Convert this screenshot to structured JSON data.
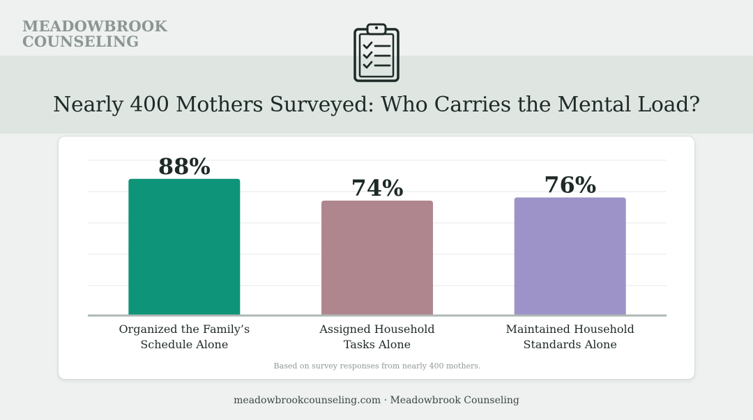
{
  "brand": {
    "line1": "MEADOWBROOK",
    "line2": "COUNSELING"
  },
  "header": {
    "icon": "clipboard-checklist-icon",
    "title": "Nearly 400 Mothers Surveyed: Who Carries the Mental Load?"
  },
  "chart_data": {
    "type": "bar",
    "categories": [
      [
        "Organized the Family’s",
        "Schedule Alone"
      ],
      [
        "Assigned Household",
        "Tasks Alone"
      ],
      [
        "Maintained Household",
        "Standards Alone"
      ]
    ],
    "values": [
      88,
      74,
      76
    ],
    "value_labels": [
      "88%",
      "74%",
      "76%"
    ],
    "colors": [
      "#0e9478",
      "#b0868e",
      "#9d93c8"
    ],
    "ylim": [
      0,
      100
    ],
    "grid": true,
    "title": "",
    "xlabel": "",
    "ylabel": ""
  },
  "note": "Based on survey responses from nearly 400 mothers.",
  "footer": "meadowbrookcounseling.com · Meadowbrook Counseling"
}
